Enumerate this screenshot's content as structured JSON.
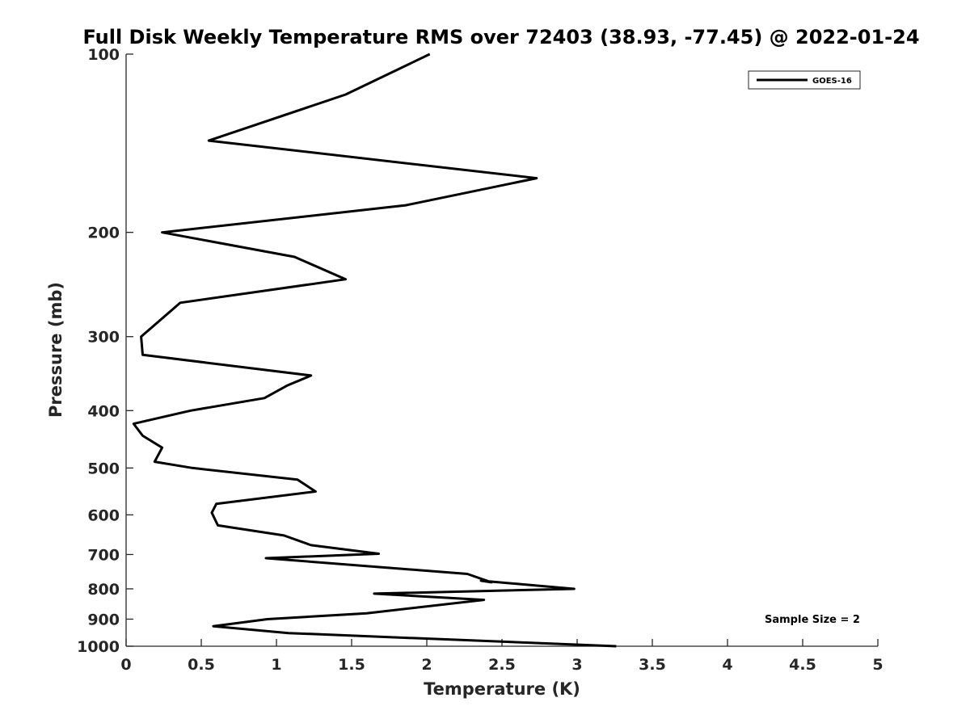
{
  "chart_data": {
    "type": "line",
    "title": "Full Disk Weekly Temperature RMS over 72403 (38.93, -77.45) @ 2022-01-24",
    "xlabel": "Temperature (K)",
    "ylabel": "Pressure (mb)",
    "xlim": [
      0,
      5
    ],
    "ylim": [
      100,
      1000
    ],
    "y_scale": "log",
    "y_reversed": true,
    "x_ticks": [
      "0",
      "0.5",
      "1",
      "1.5",
      "2",
      "2.5",
      "3",
      "3.5",
      "4",
      "4.5",
      "5"
    ],
    "y_ticks": [
      "100",
      "200",
      "300",
      "400",
      "500",
      "600",
      "700",
      "800",
      "900",
      "1000"
    ],
    "grid": false,
    "legend_position": "top-right",
    "annotation": "Sample Size = 2",
    "series": [
      {
        "name": "GOES-16",
        "color": "#000000",
        "x": [
          2.02,
          1.46,
          0.55,
          2.73,
          1.86,
          0.24,
          1.12,
          1.46,
          0.36,
          0.1,
          0.11,
          1.23,
          1.07,
          0.92,
          0.43,
          0.05,
          0.11,
          0.24,
          0.19,
          0.44,
          1.14,
          1.26,
          0.6,
          0.57,
          0.61,
          1.05,
          1.23,
          1.68,
          0.93,
          2.27,
          2.43,
          2.36,
          2.98,
          1.65,
          2.38,
          1.6,
          0.94,
          0.58,
          1.08,
          3.26
        ],
        "y": [
          100,
          117,
          140,
          162,
          180,
          200,
          220,
          240,
          263,
          300,
          322,
          349,
          363,
          381,
          400,
          421,
          441,
          462,
          488,
          500,
          523,
          548,
          575,
          595,
          625,
          650,
          675,
          698,
          710,
          755,
          780,
          775,
          800,
          815,
          835,
          880,
          900,
          925,
          950,
          1000
        ]
      }
    ]
  }
}
